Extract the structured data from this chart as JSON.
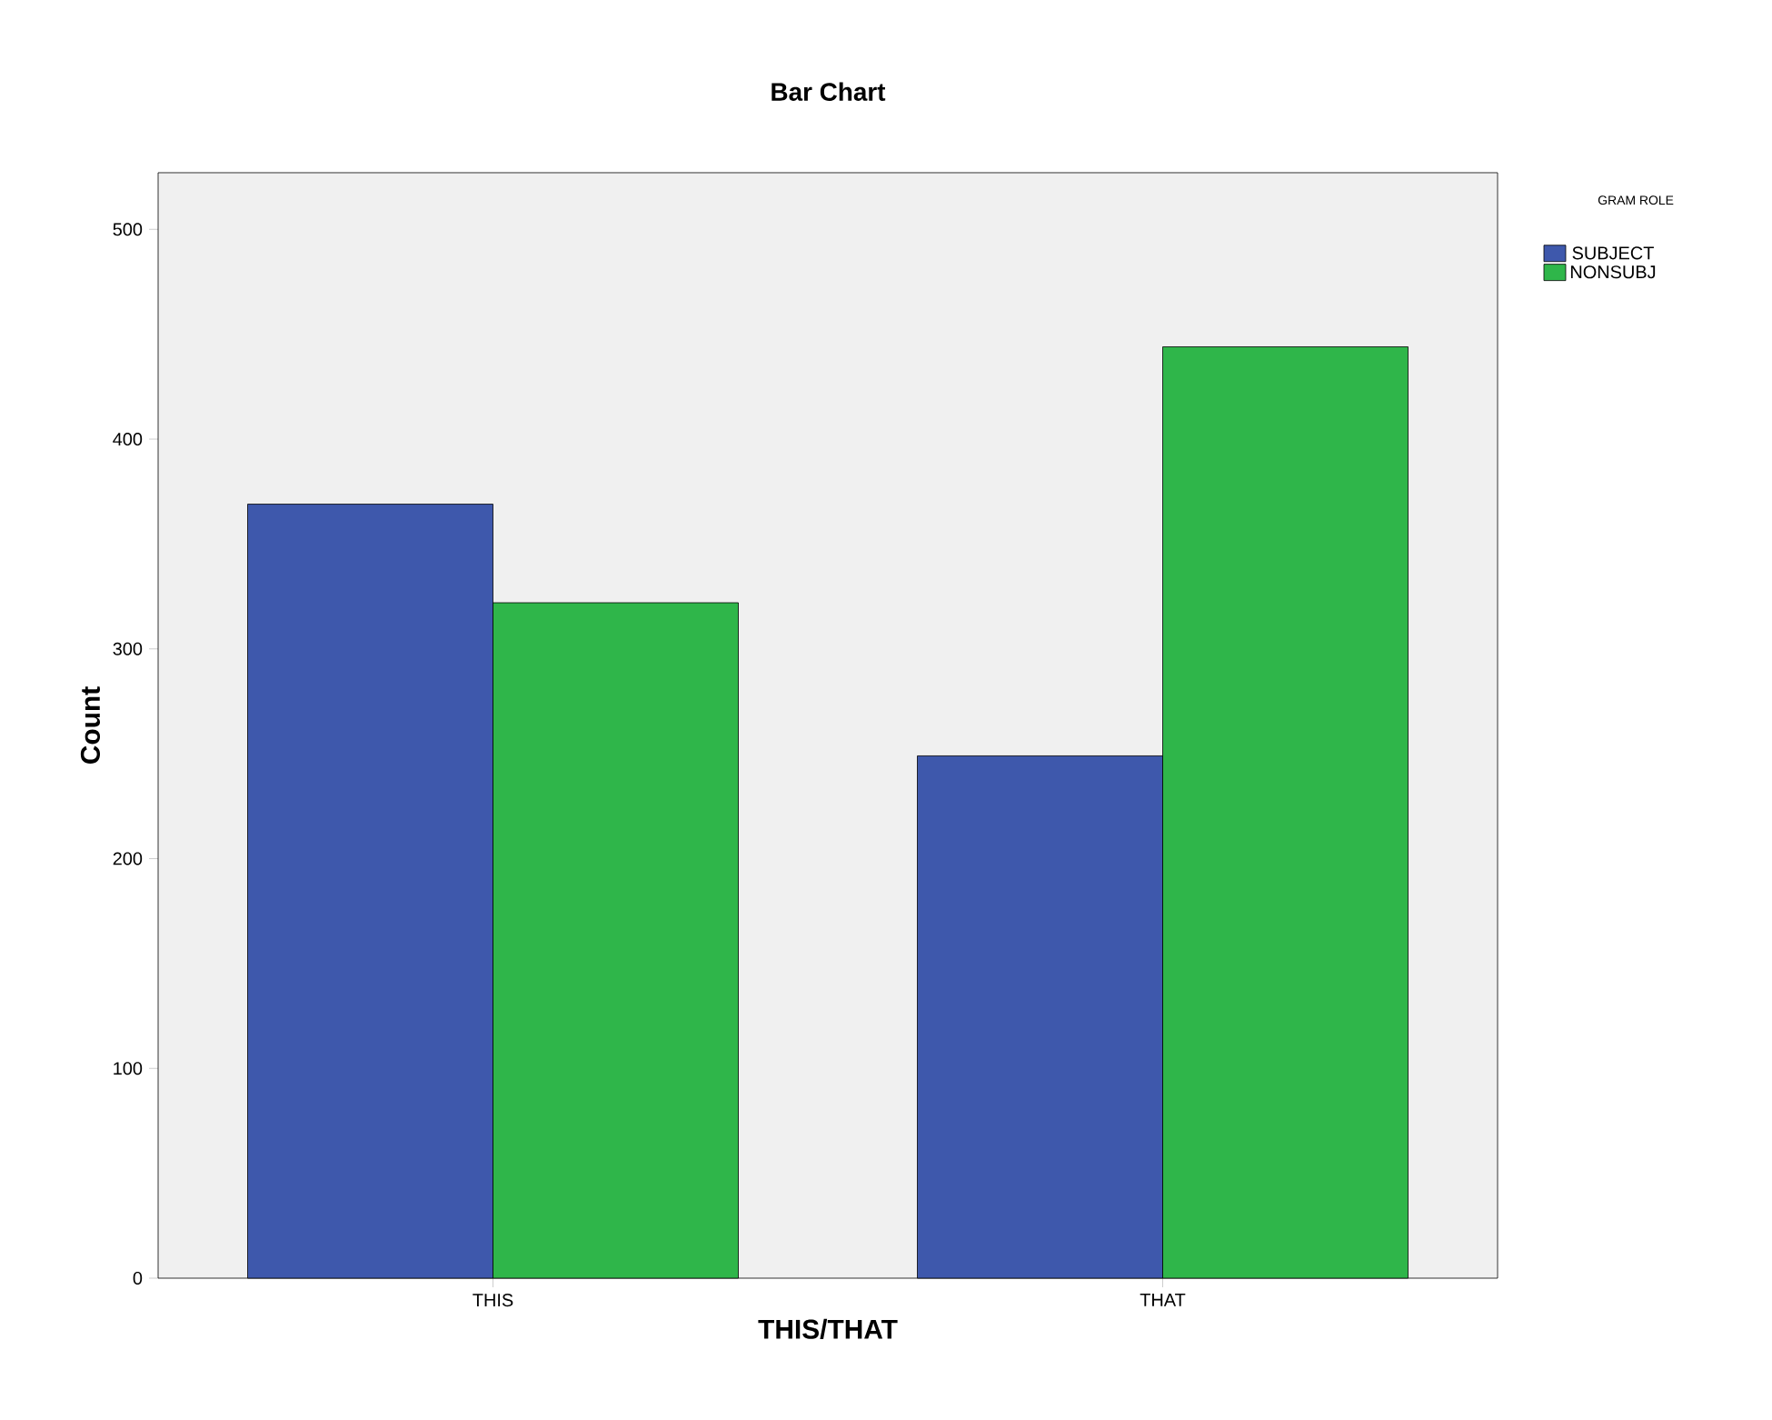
{
  "chart_data": {
    "type": "bar",
    "title": "Bar Chart",
    "xlabel": "THIS/THAT",
    "ylabel": "Count",
    "legend_title": "GRAM ROLE",
    "categories": [
      "THIS",
      "THAT"
    ],
    "series": [
      {
        "name": "SUBJECT",
        "color": "#3e58ac",
        "values": [
          369,
          249
        ]
      },
      {
        "name": "NONSUBJ",
        "color": "#2fb64a",
        "values": [
          322,
          444
        ]
      }
    ],
    "ylim": [
      0,
      527
    ],
    "yticks": [
      0,
      100,
      200,
      300,
      400,
      500
    ],
    "legend": "top right",
    "grid": false
  }
}
